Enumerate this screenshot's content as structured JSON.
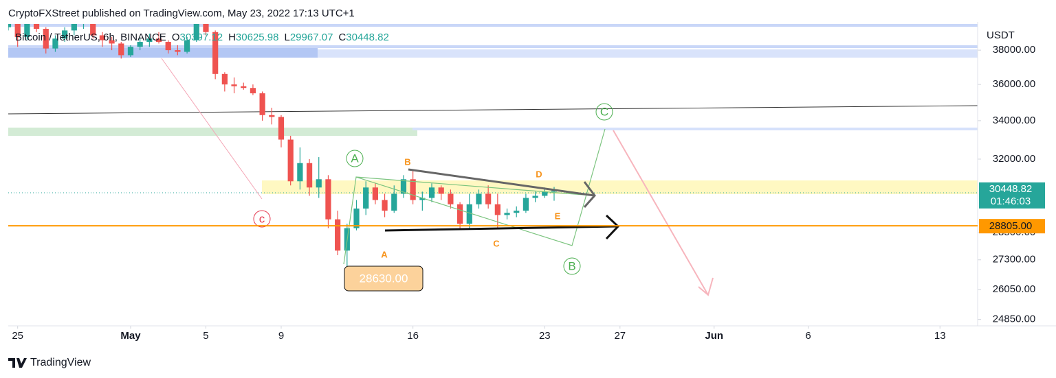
{
  "header": "CryptoFXStreet published on TradingView.com, May 23, 2022 17:13 UTC+1",
  "chart_data": {
    "type": "candlestick",
    "symbol": "Bitcoin / TetherUS, 6h, BINANCE",
    "ohlc_labels": [
      "O",
      "H",
      "L",
      "C"
    ],
    "currency": "USDT",
    "up_color": "#26a69a",
    "down_color": "#ef5350",
    "x": [
      "2022-04-24T12:00",
      "2022-04-25T00:00",
      "2022-04-25T12:00",
      "2022-04-26T00:00",
      "2022-04-26T12:00",
      "2022-04-27T00:00",
      "2022-04-27T12:00",
      "2022-04-28T00:00",
      "2022-04-28T12:00",
      "2022-04-29T00:00",
      "2022-04-29T12:00",
      "2022-04-30T00:00",
      "2022-04-30T12:00",
      "2022-05-01T00:00",
      "2022-05-01T12:00",
      "2022-05-02T00:00",
      "2022-05-02T12:00",
      "2022-05-03T00:00",
      "2022-05-03T12:00",
      "2022-05-04T00:00",
      "2022-05-04T12:00",
      "2022-05-05T00:00",
      "2022-05-05T12:00",
      "2022-05-06T00:00",
      "2022-05-06T12:00",
      "2022-05-07T00:00",
      "2022-05-07T12:00",
      "2022-05-08T00:00",
      "2022-05-08T12:00",
      "2022-05-09T00:00",
      "2022-05-09T12:00",
      "2022-05-10T00:00",
      "2022-05-10T12:00",
      "2022-05-11T00:00",
      "2022-05-11T12:00",
      "2022-05-12T00:00",
      "2022-05-12T12:00",
      "2022-05-13T00:00",
      "2022-05-13T12:00",
      "2022-05-14T00:00",
      "2022-05-14T12:00",
      "2022-05-15T00:00",
      "2022-05-15T12:00",
      "2022-05-16T00:00",
      "2022-05-16T12:00",
      "2022-05-17T00:00",
      "2022-05-17T12:00",
      "2022-05-18T00:00",
      "2022-05-18T12:00",
      "2022-05-19T00:00",
      "2022-05-19T12:00",
      "2022-05-20T00:00",
      "2022-05-20T12:00",
      "2022-05-21T00:00",
      "2022-05-21T12:00",
      "2022-05-22T00:00",
      "2022-05-22T12:00",
      "2022-05-23T00:00",
      "2022-05-23T12:00"
    ],
    "open": [
      39400,
      39700,
      38800,
      39700,
      39300,
      38100,
      38700,
      39200,
      39700,
      39700,
      38900,
      38600,
      38400,
      37700,
      38200,
      38500,
      38700,
      38500,
      38000,
      37900,
      38600,
      39600,
      39100,
      36600,
      36000,
      35900,
      35800,
      35500,
      34300,
      34200,
      33000,
      30900,
      31800,
      30600,
      31000,
      29100,
      27700,
      28700,
      29600,
      30600,
      30000,
      29500,
      30300,
      31000,
      30000,
      30100,
      30600,
      30300,
      29800,
      28900,
      29800,
      30300,
      29800,
      29300,
      29400,
      29500,
      30100,
      30200,
      30397.12
    ],
    "high": [
      39900,
      39800,
      40000,
      40100,
      39400,
      38900,
      39400,
      39900,
      40300,
      39800,
      39100,
      38800,
      38500,
      38300,
      38700,
      39000,
      39100,
      38600,
      38300,
      38800,
      39900,
      39800,
      39200,
      36700,
      36400,
      36100,
      36000,
      35600,
      34700,
      34300,
      33200,
      32600,
      32000,
      32100,
      31200,
      29500,
      28900,
      30000,
      30900,
      30800,
      30300,
      30700,
      31200,
      31400,
      30400,
      30800,
      30700,
      30500,
      29900,
      30300,
      30500,
      30700,
      30300,
      29600,
      29700,
      30300,
      30400,
      30600,
      30625.98
    ],
    "low": [
      39200,
      38200,
      38600,
      39100,
      37800,
      37900,
      38500,
      38900,
      39300,
      38700,
      38200,
      38000,
      37500,
      37600,
      38000,
      38200,
      38400,
      37800,
      37700,
      37800,
      38500,
      38900,
      36300,
      35600,
      35500,
      35700,
      35400,
      34000,
      33800,
      32600,
      30700,
      30500,
      30200,
      30100,
      28700,
      27500,
      26700,
      28600,
      29300,
      29800,
      29200,
      29400,
      30100,
      29800,
      29500,
      29900,
      30000,
      29600,
      28700,
      28650,
      29600,
      29600,
      28700,
      29100,
      29200,
      29400,
      29900,
      30100,
      29967.07
    ],
    "close": [
      39700,
      38800,
      39700,
      39300,
      38100,
      38700,
      39200,
      39700,
      39700,
      38900,
      38600,
      38400,
      37700,
      38200,
      38500,
      38700,
      38500,
      38000,
      37900,
      38600,
      39600,
      39100,
      36600,
      36000,
      35900,
      35800,
      35500,
      34300,
      34200,
      33000,
      30900,
      31800,
      30600,
      31000,
      29100,
      27700,
      28700,
      29600,
      30600,
      30000,
      29500,
      30300,
      31000,
      30000,
      30100,
      30600,
      30300,
      29800,
      28900,
      29800,
      30300,
      29800,
      29300,
      29400,
      29500,
      30100,
      30200,
      30397.12,
      30448.82
    ],
    "xlim": [
      "2022-04-24T12:00",
      "2022-06-15T00:00"
    ],
    "xticks": [
      {
        "value": "2022-04-25",
        "label": "25"
      },
      {
        "value": "2022-05-01",
        "label": "May"
      },
      {
        "value": "2022-05-05",
        "label": "5"
      },
      {
        "value": "2022-05-09",
        "label": "9"
      },
      {
        "value": "2022-05-16",
        "label": "16"
      },
      {
        "value": "2022-05-23",
        "label": "23"
      },
      {
        "value": "2022-05-27",
        "label": "27"
      },
      {
        "value": "2022-06-01",
        "label": "Jun"
      },
      {
        "value": "2022-06-06",
        "label": "6"
      },
      {
        "value": "2022-06-13",
        "label": "13"
      }
    ],
    "ylim": [
      24600,
      39600
    ],
    "log_scale": true,
    "yticks": [
      {
        "value": 24850,
        "label": "24850.00"
      },
      {
        "value": 26050,
        "label": "26050.00"
      },
      {
        "value": 27300,
        "label": "27300.00"
      },
      {
        "value": 28500,
        "label": "28500.00"
      },
      {
        "value": 32000,
        "label": "32000.00"
      },
      {
        "value": 34000,
        "label": "34000.00"
      },
      {
        "value": 36000,
        "label": "36000.00"
      },
      {
        "value": 38000,
        "label": "38000.00"
      }
    ],
    "countdown": "01:46:03",
    "hline": {
      "value": 28805,
      "label": "28805.00",
      "color": "#ff9800"
    },
    "annotations": {
      "waves_green": [
        "A",
        "B",
        "C"
      ],
      "wave_red": "c",
      "triangle": [
        "A",
        "B",
        "C",
        "D",
        "E"
      ],
      "low_box": "28630.00"
    }
  },
  "footer": "TradingView"
}
